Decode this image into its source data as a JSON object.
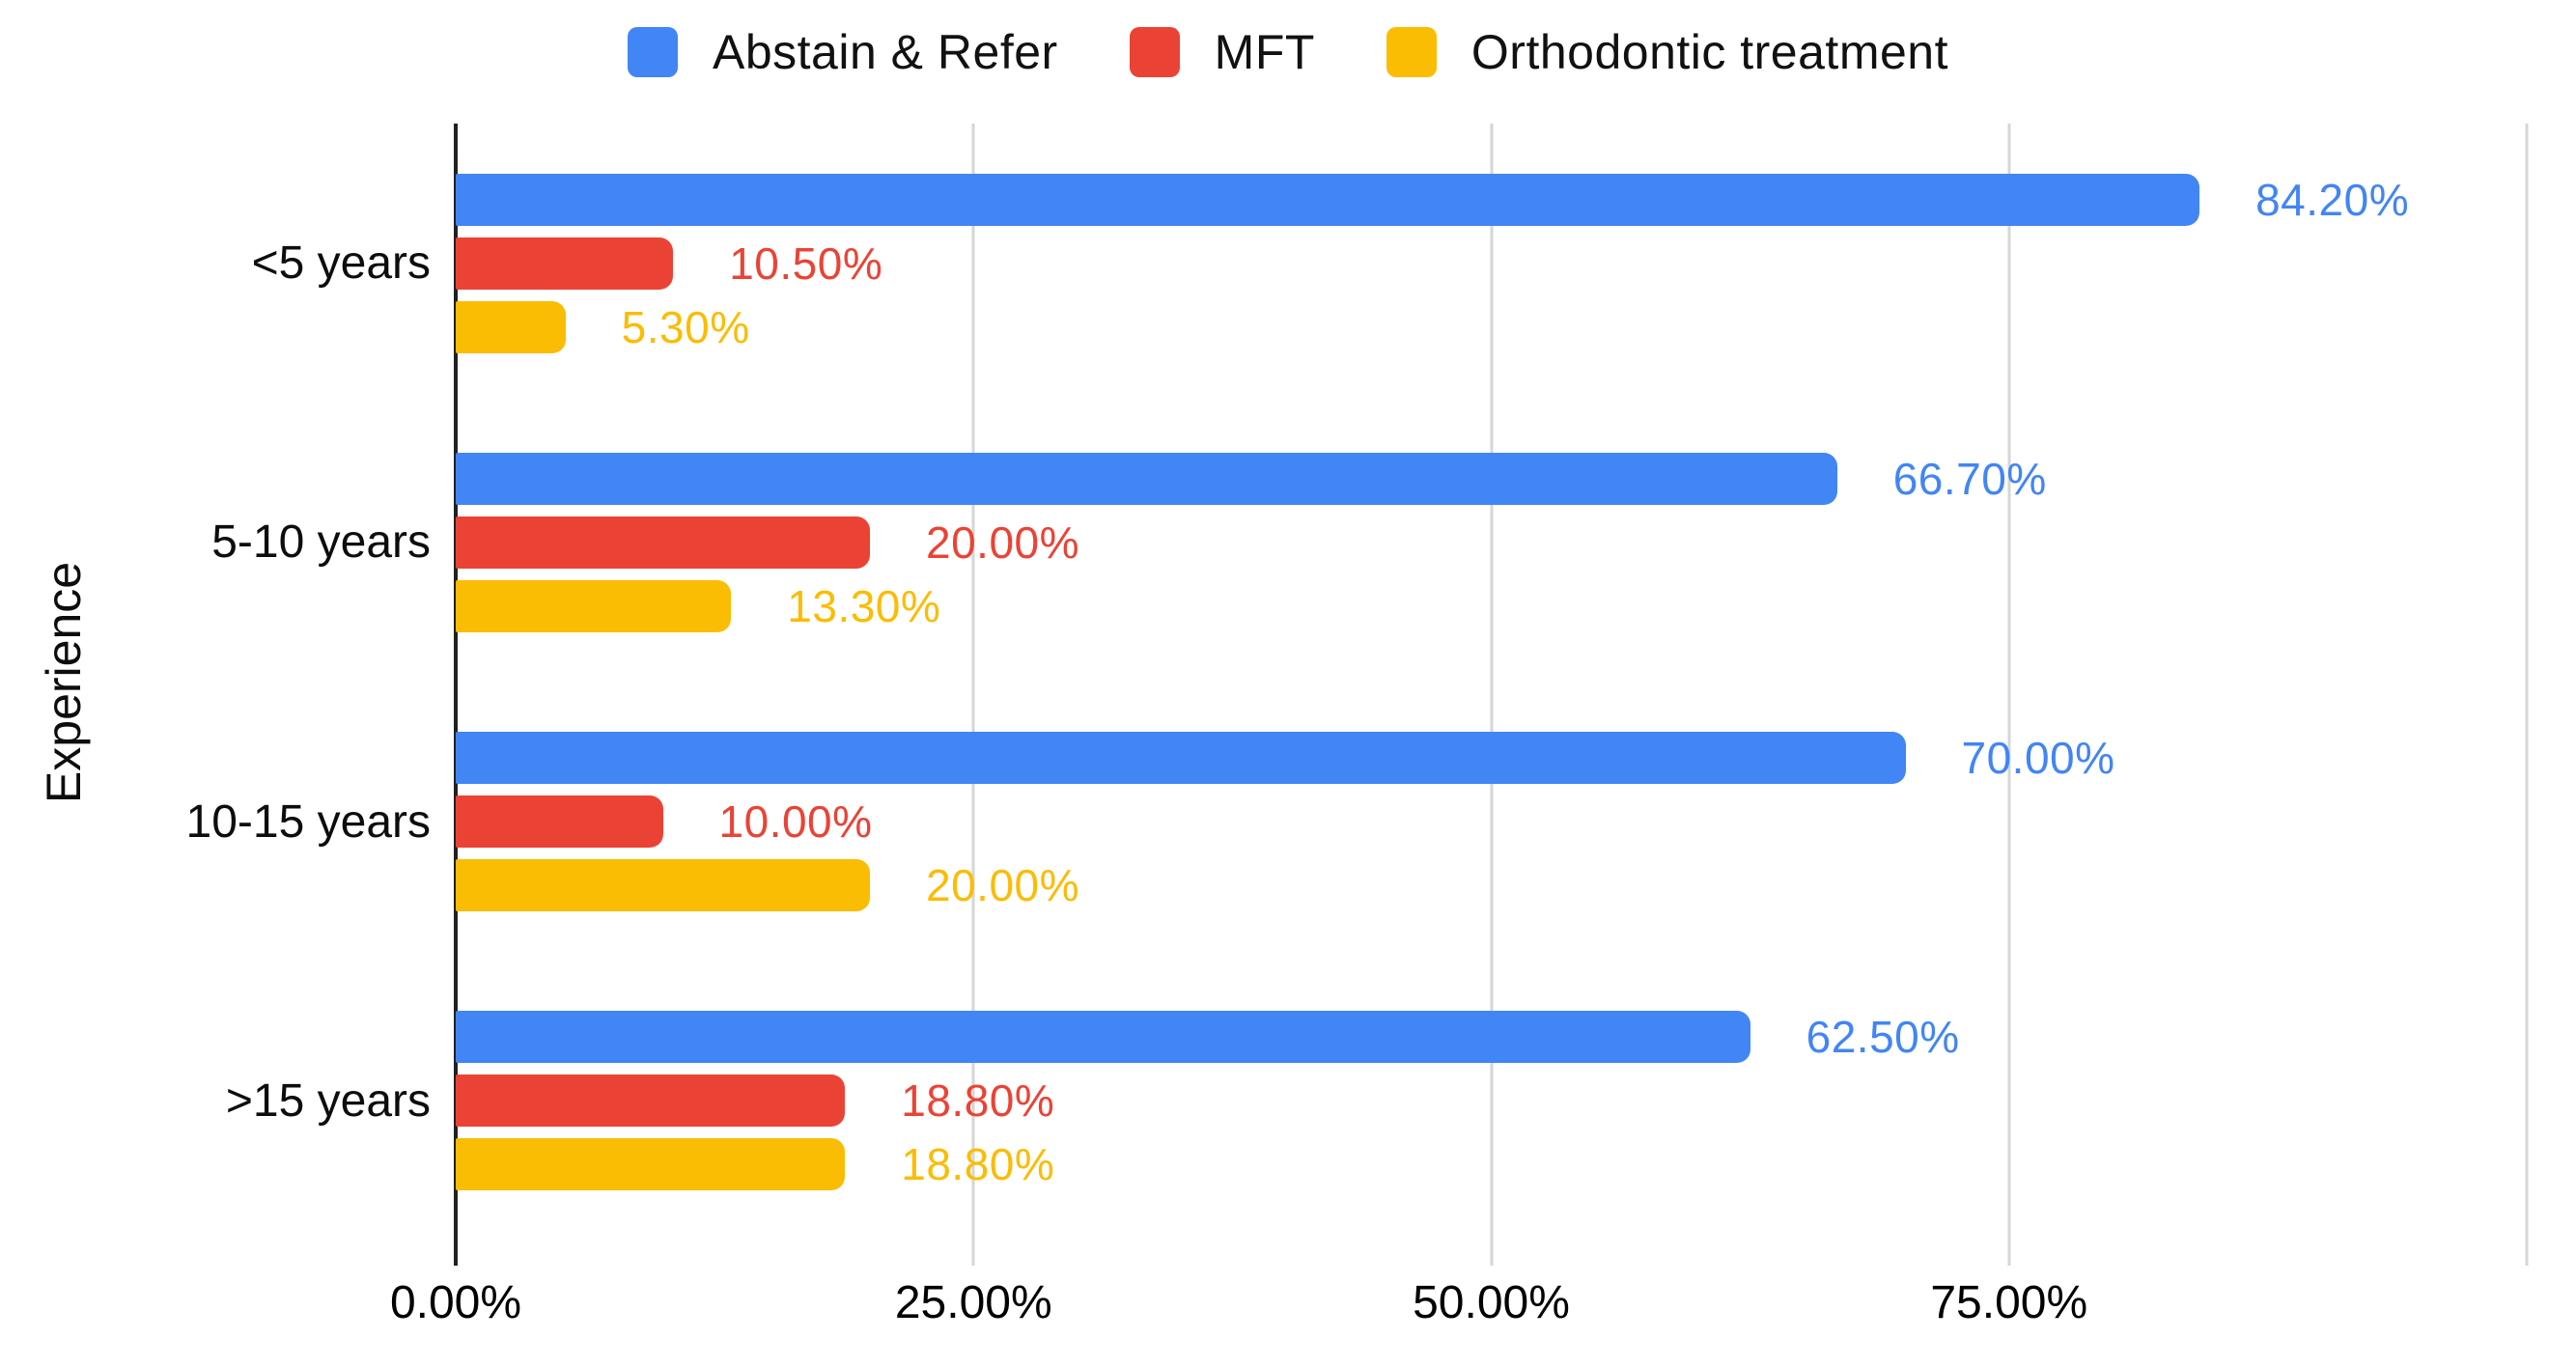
{
  "legend": {
    "items": [
      {
        "label": "Abstain & Refer",
        "color": "#4285F4"
      },
      {
        "label": "MFT",
        "color": "#EA4335"
      },
      {
        "label": "Orthodontic treatment",
        "color": "#FBBC04"
      }
    ]
  },
  "y_axis_title": "Experience",
  "chart_data": {
    "type": "bar",
    "orientation": "horizontal",
    "title": "",
    "xlabel": "",
    "ylabel": "Experience",
    "categories": [
      "<5 years",
      "5-10 years",
      "10-15 years",
      ">15 years"
    ],
    "series": [
      {
        "name": "Abstain & Refer",
        "color": "#4285F4",
        "values": [
          84.2,
          66.7,
          70.0,
          62.5
        ],
        "labels": [
          "84.20%",
          "66.70%",
          "70.00%",
          "62.50%"
        ]
      },
      {
        "name": "MFT",
        "color": "#EA4335",
        "values": [
          10.5,
          20.0,
          10.0,
          18.8
        ],
        "labels": [
          "10.50%",
          "20.00%",
          "10.00%",
          "18.80%"
        ]
      },
      {
        "name": "Orthodontic treatment",
        "color": "#FBBC04",
        "values": [
          5.3,
          13.3,
          20.0,
          18.8
        ],
        "labels": [
          "5.30%",
          "13.30%",
          "20.00%",
          "18.80%"
        ]
      }
    ],
    "x_axis": {
      "min": 0,
      "max": 100,
      "ticks": [
        {
          "value": 0,
          "label": "0.00%"
        },
        {
          "value": 25,
          "label": "25.00%"
        },
        {
          "value": 50,
          "label": "50.00%"
        },
        {
          "value": 75,
          "label": "75.00%"
        },
        {
          "value": 100,
          "label": ""
        }
      ]
    },
    "grid": true,
    "legend_position": "top"
  }
}
